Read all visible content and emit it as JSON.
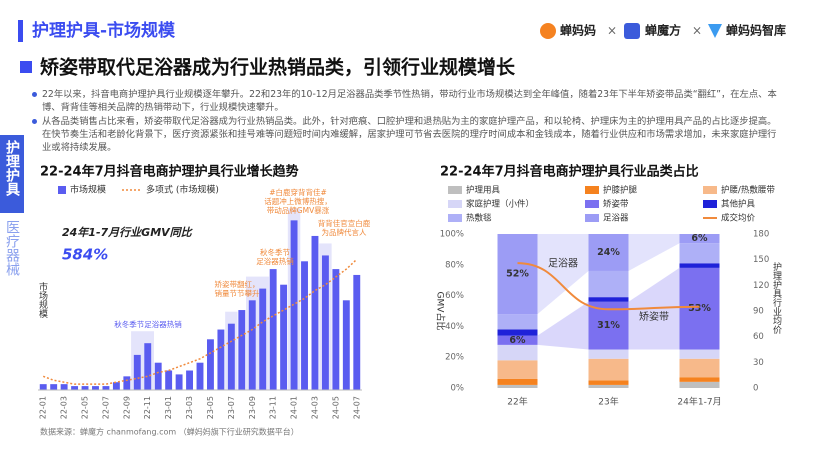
{
  "header": {
    "title": "护理护具-市场规模",
    "logos": [
      "蝉妈妈",
      "蝉魔方",
      "蝉妈妈智库"
    ],
    "separator": "×"
  },
  "headline": "矫姿带取代足浴器成为行业热销品类，引领行业规模增长",
  "bullets": [
    "22年以来，抖音电商护理护具行业规模逐年攀升。22和23年的10-12月足浴器品类季节性热销，带动行业市场规模达到全年峰值，随着23年下半年矫姿带品类“翻红”，在左点、本博、背背佳等相关品牌的热销带动下，行业规模快速攀升。",
    "从各品类销售占比来看，矫姿带取代足浴器成为行业热销品类。此外，针对疤痕、口腔护理和退热贴为主的家庭护理产品，和以轮椅、护理床为主的护理用具产品的占比逐步提高。在快节奏生活和老龄化背景下，医疗资源紧张和挂号难等问题短时间内难缓解，居家护理可节省去医院的理疗时间成本和金钱成本，随着行业供应和市场需求增加，未来家庭护理行业或将持续发展。"
  ],
  "sidebar": {
    "tabs": [
      "护理护具",
      "医疗器械"
    ]
  },
  "chart_data": [
    {
      "type": "bar",
      "title": "22-24年7月抖音电商护理护具行业增长趋势",
      "categories": [
        "22-01",
        null,
        "22-03",
        null,
        "22-05",
        null,
        "22-07",
        null,
        "22-09",
        null,
        "22-11",
        null,
        "23-01",
        null,
        "23-03",
        null,
        "23-05",
        null,
        "23-07",
        null,
        "23-09",
        null,
        "23-11",
        null,
        "24-01",
        null,
        "24-03",
        null,
        "24-05",
        null,
        "24-07"
      ],
      "series": [
        {
          "name": "市场规模",
          "color": "#5a5cf0",
          "values": [
            3,
            3,
            3,
            2,
            2,
            2,
            2,
            4,
            7,
            18,
            24,
            14,
            10,
            8,
            10,
            14,
            26,
            31,
            34,
            41,
            46,
            52,
            62,
            54,
            87,
            66,
            79,
            69,
            62,
            46,
            59
          ]
        },
        {
          "name": "多项式 (市场规模)",
          "type": "line",
          "color": "#f08a3c",
          "values": [
            7,
            5,
            4,
            3,
            3,
            3,
            3,
            4,
            5,
            6,
            7,
            9,
            10,
            12,
            14,
            16,
            19,
            22,
            25,
            28,
            31,
            35,
            38,
            41,
            44,
            47,
            51,
            54,
            58,
            62,
            67
          ]
        }
      ],
      "ylabel": "市场规模",
      "ylim": [
        0,
        100
      ],
      "callout": {
        "label": "24年1-7月行业GMV同比",
        "value": "584%"
      },
      "annotations": [
        {
          "lines": [
            "秋冬季节足浴器热销"
          ]
        },
        {
          "lines": [
            "矫姿带翻红，",
            "销量节节攀升"
          ]
        },
        {
          "lines": [
            "秋冬季节",
            "足浴器热销"
          ]
        },
        {
          "lines": [
            "#白鹿穿背背佳#",
            "话题冲上微博热搜，",
            "带动品牌GMV暴涨"
          ]
        },
        {
          "lines": [
            "背背佳官宣白鹿",
            "为品牌代言人"
          ]
        }
      ]
    },
    {
      "type": "stacked_bar",
      "title": "22-24年7月抖音电商护理护具行业品类占比",
      "categories": [
        "22年",
        "23年",
        "24年1-7月"
      ],
      "series": [
        {
          "name": "护理用具",
          "color": "#bfbfbf",
          "values": [
            2,
            2,
            4
          ]
        },
        {
          "name": "护膝护腿",
          "color": "#f5821f",
          "values": [
            4,
            3,
            3
          ]
        },
        {
          "name": "护腰/热敷腰带",
          "color": "#f7b98a",
          "values": [
            12,
            14,
            12
          ]
        },
        {
          "name": "家庭护理（小件）",
          "color": "#d6d6f7",
          "values": [
            10,
            6,
            6
          ]
        },
        {
          "name": "矫姿带",
          "color": "#7b70f0",
          "values": [
            6,
            31,
            53
          ],
          "value_labels": [
            "6%",
            "31%",
            "53%"
          ]
        },
        {
          "name": "其他护具",
          "color": "#1f22d9",
          "values": [
            4,
            3,
            3
          ]
        },
        {
          "name": "热敷毯",
          "color": "#aeb0f7",
          "values": [
            10,
            17,
            13
          ]
        },
        {
          "name": "足浴器",
          "color": "#9c9cf5",
          "values": [
            52,
            24,
            6
          ],
          "value_labels": [
            "52%",
            "24%",
            "6%"
          ]
        },
        {
          "name": "成交均价",
          "type": "line",
          "axis": "y2",
          "color": "#f08a3c",
          "values": [
            146,
            92,
            95
          ]
        }
      ],
      "ylim": [
        0,
        100
      ],
      "yticks": [
        {
          "value": 0,
          "label": "0%"
        },
        {
          "value": 20,
          "label": "20%"
        },
        {
          "value": 40,
          "label": "40%"
        },
        {
          "value": 60,
          "label": "60%"
        },
        {
          "value": 80,
          "label": "80%"
        },
        {
          "value": 100,
          "label": "100%"
        }
      ],
      "y2lim": [
        0,
        180
      ],
      "y2ticks": [
        0,
        30,
        60,
        90,
        120,
        150,
        180
      ],
      "ylabel": "GMV占比",
      "y2label": "护理护具行业均价",
      "annotations": [
        {
          "text": "足浴器"
        },
        {
          "text": "矫姿带"
        }
      ]
    }
  ],
  "footer": "数据来源：蝉魔方 chanmofang.com （蝉妈妈旗下行业研究数据平台）"
}
